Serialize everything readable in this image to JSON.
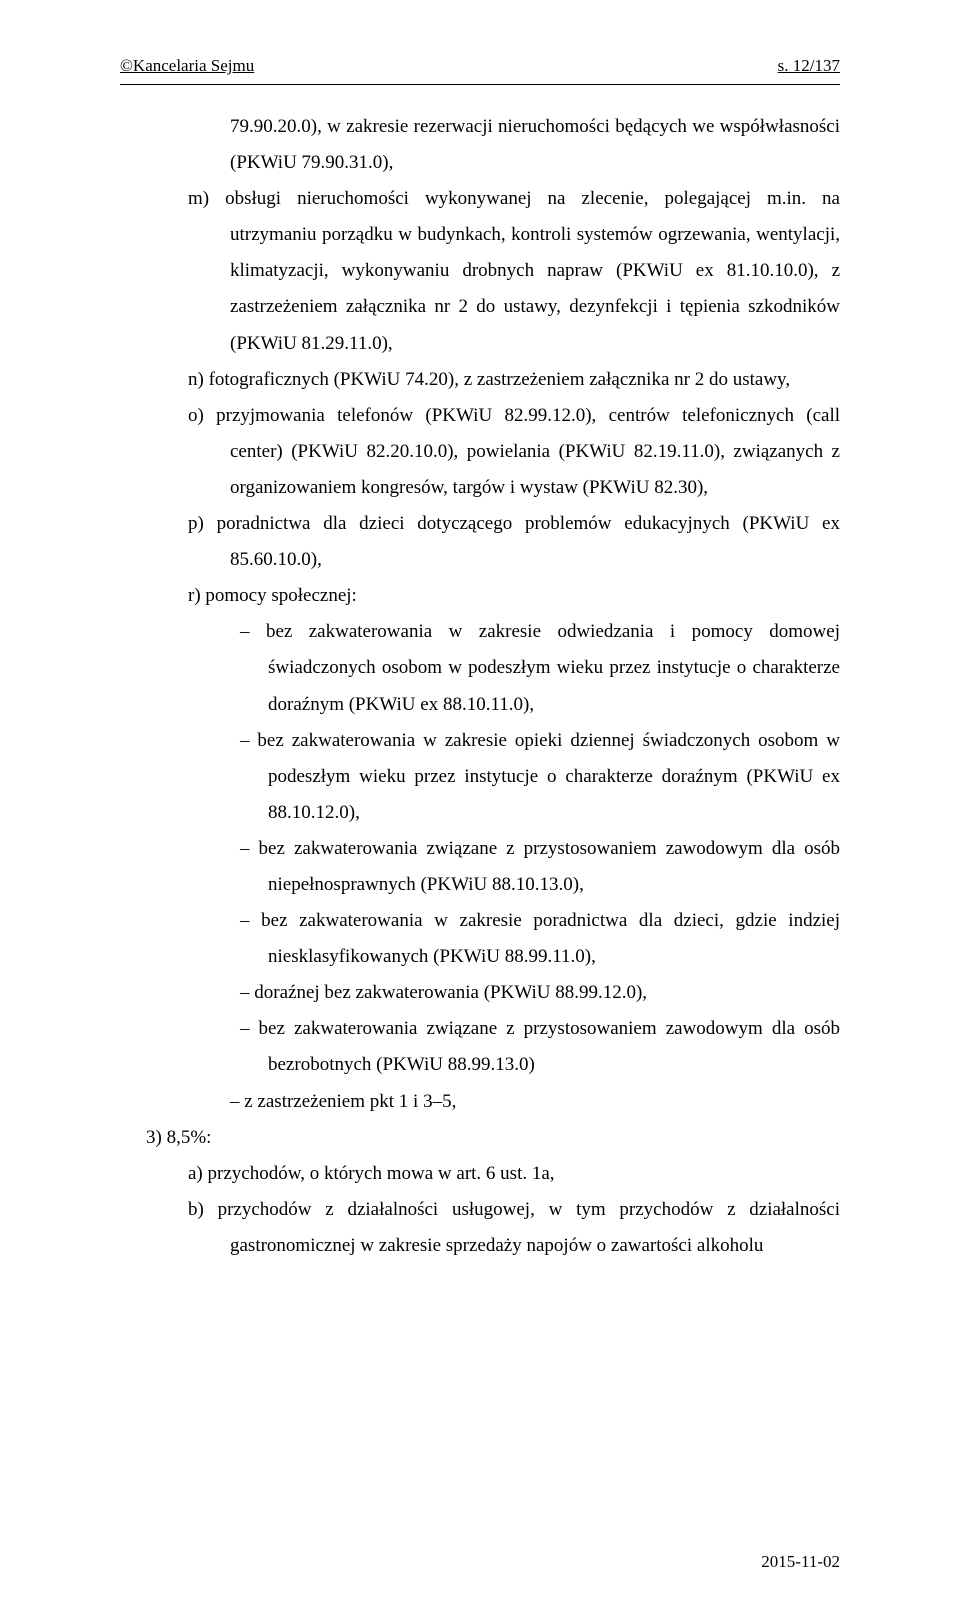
{
  "header": {
    "left": "©Kancelaria Sejmu",
    "right": "s. 12/137"
  },
  "lines": [
    {
      "cls": "indent-1-cont",
      "text": "79.90.20.0), w zakresie rezerwacji nieruchomości będących we współwłasności (PKWiU 79.90.31.0),"
    },
    {
      "cls": "indent-1",
      "text": "m)  obsługi nieruchomości wykonywanej na zlecenie, polegającej m.in. na utrzymaniu porządku w budynkach, kontroli systemów ogrzewania, wentylacji, klimatyzacji, wykonywaniu drobnych napraw (PKWiU ex 81.10.10.0), z zastrzeżeniem załącznika nr 2 do ustawy, dezynfekcji i tępienia szkodników (PKWiU 81.29.11.0),"
    },
    {
      "cls": "indent-1",
      "text": "n)  fotograficznych (PKWiU 74.20), z zastrzeżeniem załącznika nr 2 do ustawy,"
    },
    {
      "cls": "indent-1",
      "text": "o)  przyjmowania telefonów (PKWiU 82.99.12.0), centrów telefonicznych (call center) (PKWiU 82.20.10.0), powielania (PKWiU 82.19.11.0), związanych z organizowaniem kongresów, targów i wystaw (PKWiU 82.30),"
    },
    {
      "cls": "indent-1",
      "text": "p)   poradnictwa dla dzieci dotyczącego problemów edukacyjnych (PKWiU ex 85.60.10.0),"
    },
    {
      "cls": "indent-1",
      "text": "r)   pomocy społecznej:"
    },
    {
      "cls": "indent-2",
      "text": "–  bez zakwaterowania w zakresie odwiedzania i pomocy domowej świadczonych osobom w podeszłym wieku przez instytucje o charakterze doraźnym (PKWiU ex 88.10.11.0),"
    },
    {
      "cls": "indent-2",
      "text": "–  bez zakwaterowania w zakresie opieki dziennej świadczonych osobom w podeszłym wieku przez instytucje o charakterze doraźnym (PKWiU ex 88.10.12.0),"
    },
    {
      "cls": "indent-2",
      "text": "–  bez zakwaterowania związane z przystosowaniem zawodowym dla osób niepełnosprawnych (PKWiU 88.10.13.0),"
    },
    {
      "cls": "indent-2",
      "text": "–  bez zakwaterowania w zakresie poradnictwa dla dzieci, gdzie indziej niesklasyfikowanych (PKWiU 88.99.11.0),"
    },
    {
      "cls": "indent-2",
      "text": "–  doraźnej bez zakwaterowania (PKWiU 88.99.12.0),"
    },
    {
      "cls": "indent-2",
      "text": "–  bez zakwaterowania związane z przystosowaniem zawodowym dla osób bezrobotnych (PKWiU 88.99.13.0)"
    },
    {
      "cls": "indent-1-cont",
      "text": "– z zastrzeżeniem pkt 1 i 3–5,"
    },
    {
      "cls": "indent-top",
      "text": "3)   8,5%:"
    },
    {
      "cls": "indent-1",
      "text": "a)  przychodów, o których mowa w art. 6 ust. 1a,"
    },
    {
      "cls": "indent-1",
      "text": "b)  przychodów z działalności usługowej, w tym przychodów z działalności gastronomicznej w zakresie sprzedaży napojów o zawartości alkoholu"
    }
  ],
  "footer": {
    "date": "2015-11-02"
  }
}
